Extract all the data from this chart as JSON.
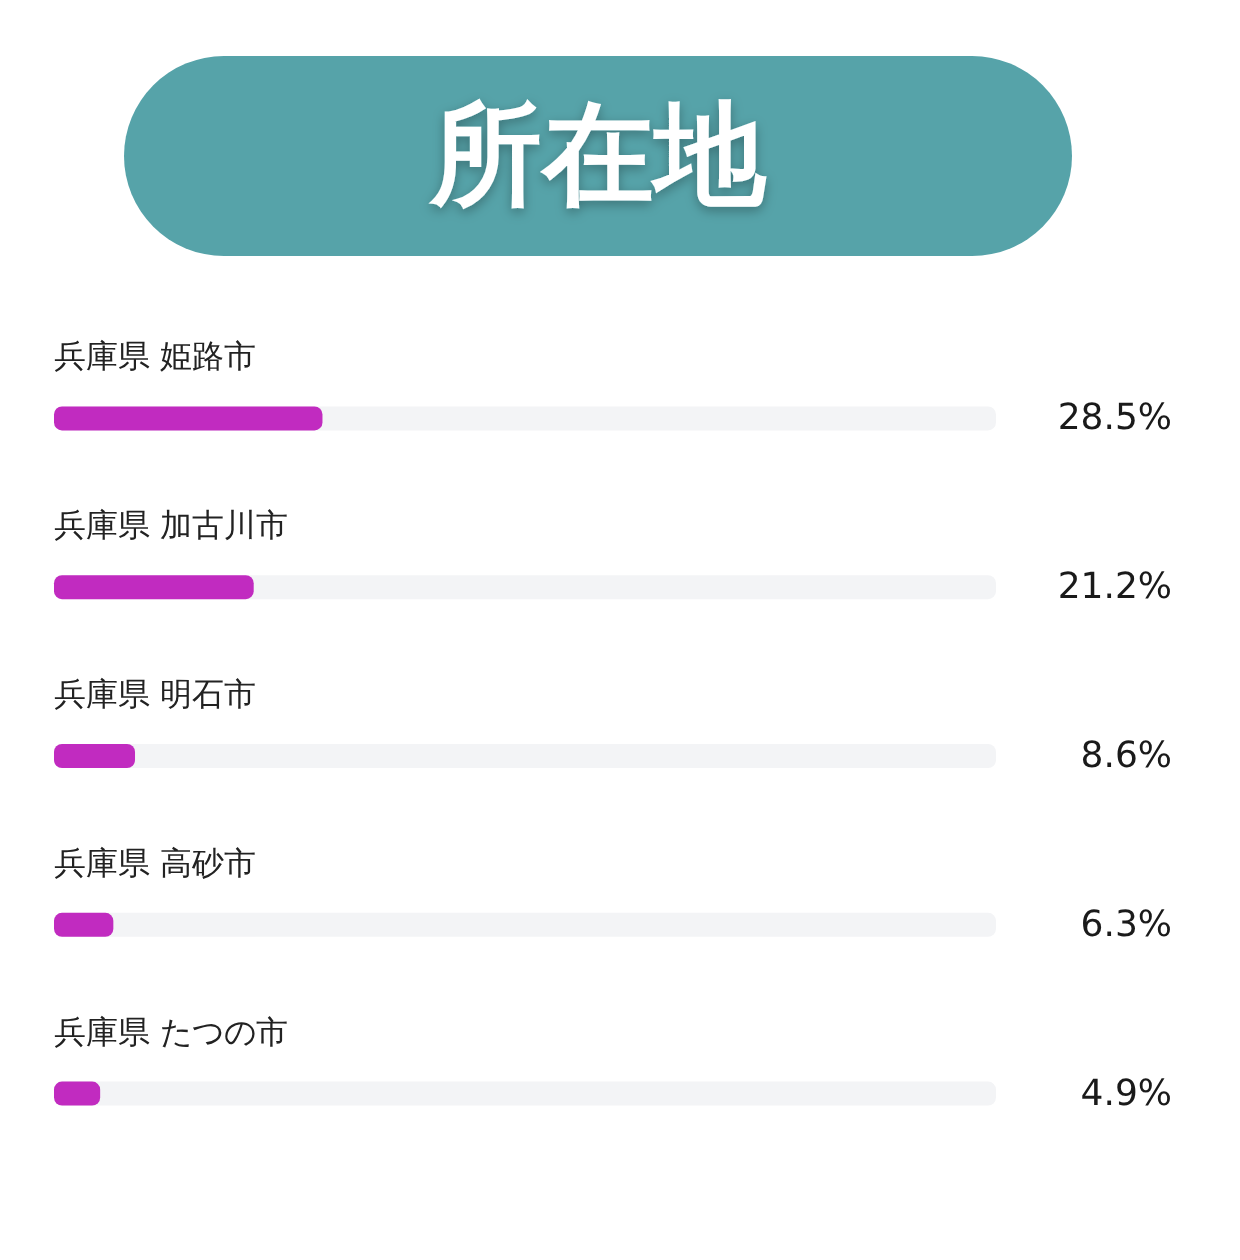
{
  "chart_data": {
    "type": "bar",
    "orientation": "horizontal",
    "title": "所在地",
    "categories": [
      "兵庫県 姫路市",
      "兵庫県 加古川市",
      "兵庫県 明石市",
      "兵庫県 高砂市",
      "兵庫県 たつの市"
    ],
    "values": [
      28.5,
      21.2,
      8.6,
      6.3,
      4.9
    ],
    "value_labels": [
      "28.5%",
      "21.2%",
      "8.6%",
      "6.3%",
      "4.9%"
    ],
    "color": "#c12bc0",
    "xlim": [
      0,
      100
    ],
    "tick_labels": "y"
  }
}
